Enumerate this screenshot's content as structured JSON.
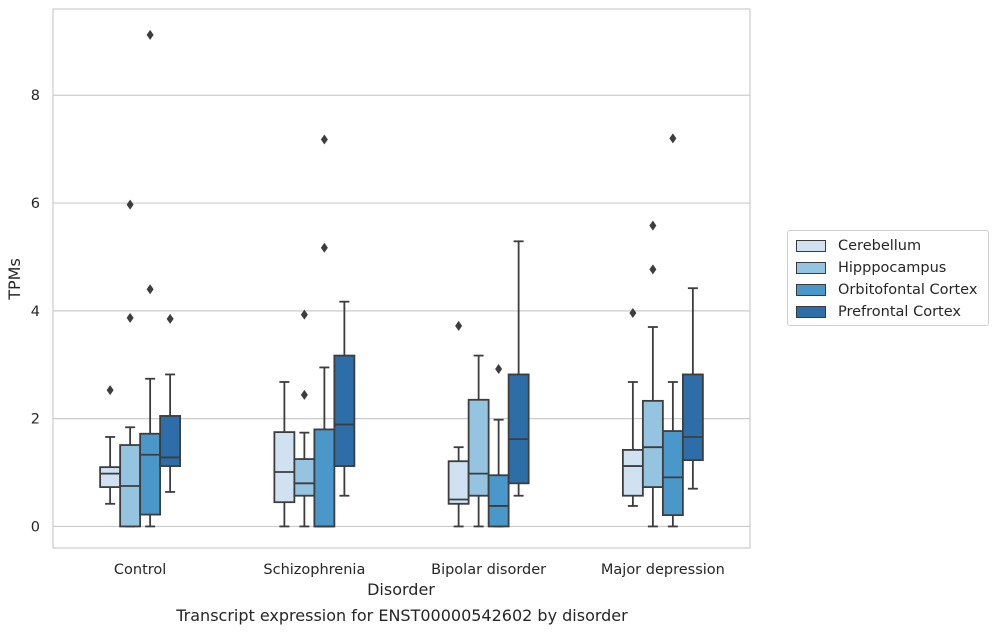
{
  "caption": "Transcript expression for ENST00000542602 by disorder",
  "chart_data": {
    "type": "box",
    "xlabel": "Disorder",
    "ylabel": "TPMs",
    "categories": [
      "Control",
      "Schizophrenia",
      "Bipolar disorder",
      "Major depression"
    ],
    "ylim": [
      -0.4,
      9.6
    ],
    "yticks": [
      0,
      2,
      4,
      6,
      8
    ],
    "grid": true,
    "legend_position": "right",
    "series": [
      {
        "name": "Cerebellum",
        "color": "#d0e1f2",
        "boxes": [
          {
            "whisker_low": 0.42,
            "q1": 0.73,
            "median": 0.98,
            "q3": 1.1,
            "whisker_high": 1.66,
            "outliers": [
              2.53
            ]
          },
          {
            "whisker_low": 0.0,
            "q1": 0.45,
            "median": 1.01,
            "q3": 1.75,
            "whisker_high": 2.68,
            "outliers": []
          },
          {
            "whisker_low": 0.0,
            "q1": 0.42,
            "median": 0.5,
            "q3": 1.21,
            "whisker_high": 1.47,
            "outliers": [
              3.72
            ]
          },
          {
            "whisker_low": 0.38,
            "q1": 0.57,
            "median": 1.12,
            "q3": 1.42,
            "whisker_high": 2.68,
            "outliers": [
              3.96
            ]
          }
        ]
      },
      {
        "name": "Hipppocampus",
        "color": "#94c4df",
        "boxes": [
          {
            "whisker_low": 0.0,
            "q1": 0.0,
            "median": 0.75,
            "q3": 1.51,
            "whisker_high": 1.84,
            "outliers": [
              3.87,
              5.97
            ]
          },
          {
            "whisker_low": 0.0,
            "q1": 0.57,
            "median": 0.8,
            "q3": 1.25,
            "whisker_high": 1.74,
            "outliers": [
              2.44,
              3.93
            ]
          },
          {
            "whisker_low": 0.0,
            "q1": 0.57,
            "median": 0.98,
            "q3": 2.35,
            "whisker_high": 3.17,
            "outliers": []
          },
          {
            "whisker_low": 0.0,
            "q1": 0.73,
            "median": 1.47,
            "q3": 2.33,
            "whisker_high": 3.7,
            "outliers": [
              4.77,
              5.58
            ]
          }
        ]
      },
      {
        "name": "Orbitofontal Cortex",
        "color": "#4a98c9",
        "boxes": [
          {
            "whisker_low": 0.0,
            "q1": 0.22,
            "median": 1.33,
            "q3": 1.72,
            "whisker_high": 2.74,
            "outliers": [
              4.4,
              9.12
            ]
          },
          {
            "whisker_low": 0.0,
            "q1": 0.0,
            "median": 0.0,
            "q3": 1.8,
            "whisker_high": 2.95,
            "outliers": [
              5.17,
              7.18
            ]
          },
          {
            "whisker_low": 0.0,
            "q1": 0.0,
            "median": 0.38,
            "q3": 0.95,
            "whisker_high": 1.98,
            "outliers": [
              2.92
            ]
          },
          {
            "whisker_low": 0.0,
            "q1": 0.21,
            "median": 0.91,
            "q3": 1.77,
            "whisker_high": 2.68,
            "outliers": [
              7.2
            ]
          }
        ]
      },
      {
        "name": "Prefrontal Cortex",
        "color": "#2d6ea8",
        "boxes": [
          {
            "whisker_low": 0.64,
            "q1": 1.12,
            "median": 1.28,
            "q3": 2.05,
            "whisker_high": 2.82,
            "outliers": [
              3.85
            ]
          },
          {
            "whisker_low": 0.57,
            "q1": 1.12,
            "median": 1.89,
            "q3": 3.17,
            "whisker_high": 4.17,
            "outliers": []
          },
          {
            "whisker_low": 0.57,
            "q1": 0.8,
            "median": 1.62,
            "q3": 2.82,
            "whisker_high": 5.29,
            "outliers": []
          },
          {
            "whisker_low": 0.7,
            "q1": 1.23,
            "median": 1.66,
            "q3": 2.82,
            "whisker_high": 4.42,
            "outliers": []
          }
        ]
      }
    ]
  }
}
